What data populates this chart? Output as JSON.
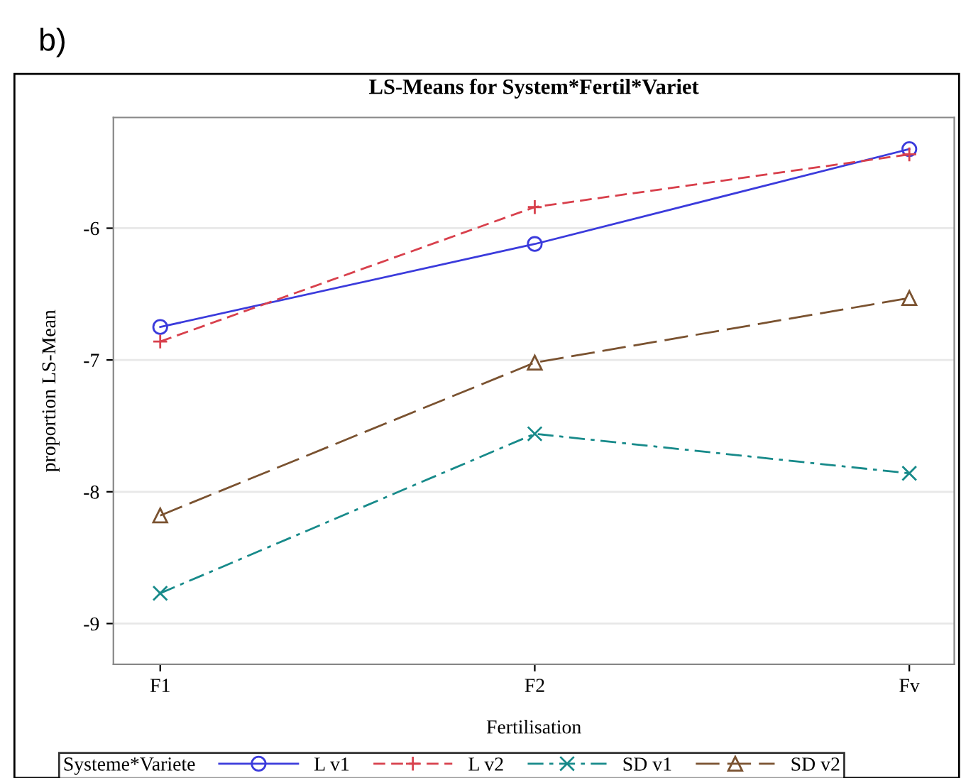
{
  "chart_data": {
    "type": "line",
    "title": "LS-Means for System*Fertil*Variet",
    "xlabel": "Fertilisation",
    "ylabel": "proportion LS-Mean",
    "legend_title": "Systeme*Variete",
    "annotations": [
      "b)"
    ],
    "categories": [
      "F1",
      "F2",
      "Fv"
    ],
    "series": [
      {
        "name": "L v1",
        "color": "#3b3bdc",
        "values": [
          -6.75,
          -6.12,
          -5.4
        ],
        "marker": "circle",
        "line_style": "solid"
      },
      {
        "name": "L v2",
        "color": "#d8404c",
        "values": [
          -6.86,
          -5.84,
          -5.44
        ],
        "marker": "plus",
        "line_style": "dashed"
      },
      {
        "name": "SD v1",
        "color": "#178a8a",
        "values": [
          -8.77,
          -7.56,
          -7.86
        ],
        "marker": "cross",
        "line_style": "dashdot"
      },
      {
        "name": "SD v2",
        "color": "#7a5230",
        "values": [
          -8.18,
          -7.02,
          -6.53
        ],
        "marker": "triangle",
        "line_style": "longdash"
      }
    ],
    "ylim": [
      -9.31,
      -5.16
    ],
    "yticks": [
      -9,
      -8,
      -7,
      -6
    ],
    "grid": "y",
    "legend": "bottom"
  }
}
